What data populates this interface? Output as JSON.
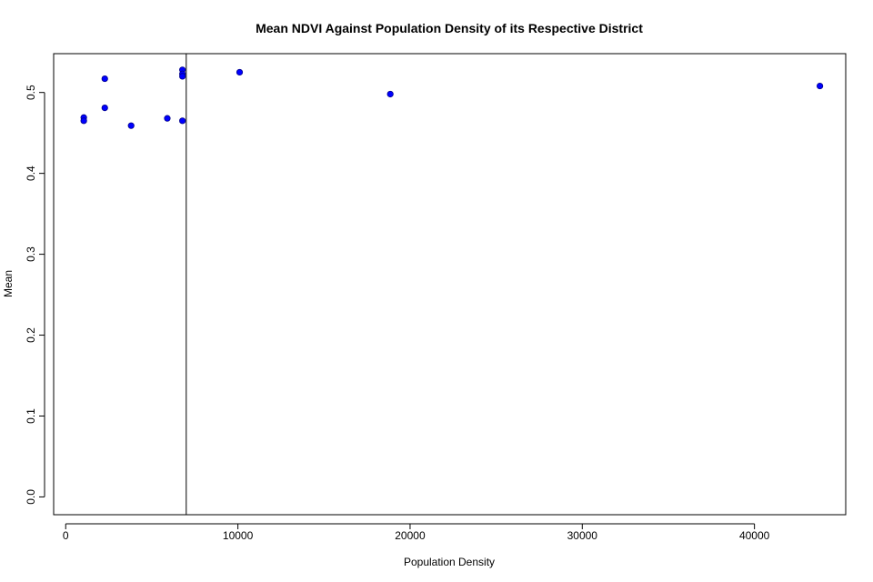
{
  "chart_data": {
    "type": "scatter",
    "title": "Mean NDVI Against Population Density of its Respective District",
    "xlabel": "Population Density",
    "ylabel": "Mean",
    "xlim": [
      -700,
      45300
    ],
    "ylim": [
      -0.022,
      0.548
    ],
    "xticks": [
      0,
      10000,
      20000,
      30000,
      40000
    ],
    "xtick_labels": [
      "0",
      "10000",
      "20000",
      "30000",
      "40000"
    ],
    "yticks": [
      0.0,
      0.1,
      0.2,
      0.3,
      0.4,
      0.5
    ],
    "ytick_labels": [
      "0.0",
      "0.1",
      "0.2",
      "0.3",
      "0.4",
      "0.5"
    ],
    "grid": false,
    "legend": "none",
    "point_color": "#0000ff",
    "vertical_line_x": 7000,
    "points": [
      {
        "x": 1050,
        "y": 0.469
      },
      {
        "x": 1050,
        "y": 0.465
      },
      {
        "x": 2270,
        "y": 0.517
      },
      {
        "x": 2270,
        "y": 0.481
      },
      {
        "x": 3800,
        "y": 0.459
      },
      {
        "x": 5900,
        "y": 0.468
      },
      {
        "x": 6780,
        "y": 0.528
      },
      {
        "x": 6780,
        "y": 0.523
      },
      {
        "x": 6780,
        "y": 0.52
      },
      {
        "x": 6780,
        "y": 0.465
      },
      {
        "x": 10100,
        "y": 0.525
      },
      {
        "x": 18850,
        "y": 0.498
      },
      {
        "x": 43800,
        "y": 0.508
      }
    ]
  }
}
